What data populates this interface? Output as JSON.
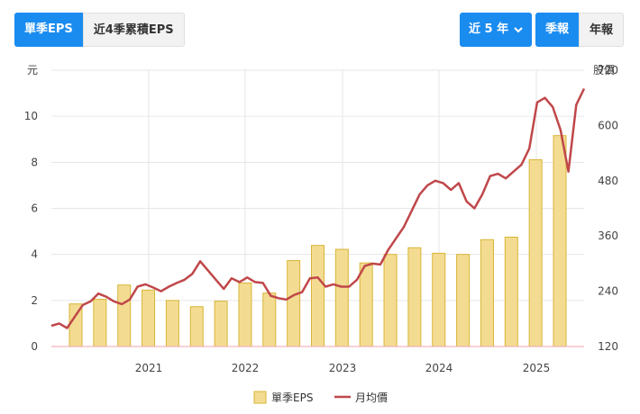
{
  "controls": {
    "left_tabs": [
      {
        "label": "單季EPS",
        "active": true
      },
      {
        "label": "近4季累積EPS",
        "active": false
      }
    ],
    "range_dropdown": {
      "label": "近 5 年"
    },
    "right_tabs": [
      {
        "label": "季報",
        "active": true
      },
      {
        "label": "年報",
        "active": false
      }
    ]
  },
  "colors": {
    "accent": "#1a8cf0",
    "bar_fill": "#f3dc92",
    "bar_stroke": "#d9b536",
    "line": "#c0474a",
    "grid": "#e6e6e6",
    "baseline": "#f2a3ad"
  },
  "chart_data": {
    "type": "bar+line",
    "y_left": {
      "label": "元",
      "ticks": [
        0,
        2,
        4,
        6,
        8,
        10
      ],
      "range": [
        0,
        12
      ]
    },
    "y_right": {
      "label": "股價",
      "ticks": [
        120,
        240,
        360,
        480,
        600,
        720
      ],
      "range": [
        120,
        720
      ]
    },
    "x_ticks": [
      "2021",
      "2022",
      "2023",
      "2024",
      "2025"
    ],
    "legend": [
      {
        "name": "單季EPS",
        "type": "bar"
      },
      {
        "name": "月均價",
        "type": "line"
      }
    ],
    "series": [
      {
        "name": "單季EPS",
        "type": "bar",
        "axis": "left",
        "quarters": [
          "2020Q2",
          "2020Q3",
          "2020Q4",
          "2021Q1",
          "2021Q2",
          "2021Q3",
          "2021Q4",
          "2022Q1",
          "2022Q2",
          "2022Q3",
          "2022Q4",
          "2023Q1",
          "2023Q2",
          "2023Q3",
          "2023Q4",
          "2024Q1",
          "2024Q2",
          "2024Q3",
          "2024Q4",
          "2025Q1",
          "2025Q2"
        ],
        "values": [
          1.85,
          2.05,
          2.67,
          2.45,
          2.0,
          1.73,
          1.97,
          2.76,
          2.32,
          3.73,
          4.39,
          4.22,
          3.63,
          4.0,
          4.29,
          4.05,
          4.0,
          4.64,
          4.75,
          8.11,
          9.16
        ]
      },
      {
        "name": "月均價",
        "type": "line",
        "axis": "right",
        "values": [
          165,
          170,
          160,
          185,
          210,
          218,
          235,
          228,
          218,
          212,
          222,
          250,
          255,
          248,
          240,
          250,
          258,
          265,
          278,
          305,
          285,
          265,
          245,
          268,
          260,
          270,
          260,
          258,
          230,
          225,
          222,
          232,
          238,
          268,
          270,
          250,
          255,
          250,
          250,
          265,
          295,
          300,
          298,
          330,
          355,
          380,
          415,
          450,
          470,
          480,
          475,
          460,
          475,
          435,
          420,
          450,
          490,
          495,
          485,
          500,
          515,
          550,
          650,
          660,
          640,
          590,
          500,
          645,
          680
        ]
      }
    ]
  }
}
